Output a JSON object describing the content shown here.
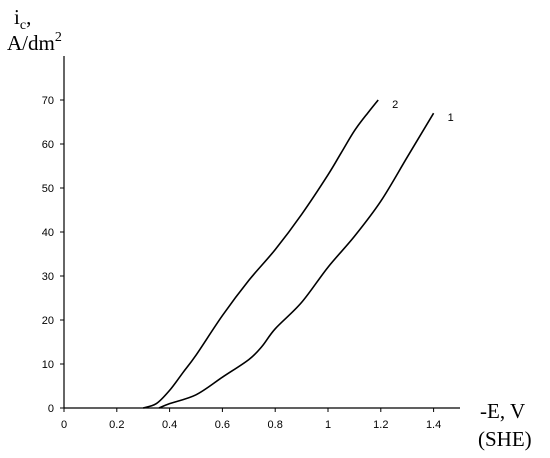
{
  "chart_data": {
    "type": "line",
    "title": "",
    "ylabel_line1": "i",
    "ylabel_sub": "c",
    "ylabel_comma": ",",
    "ylabel_line2_base": "A/dm",
    "ylabel_line2_sup": "2",
    "xlabel": "-E, V",
    "xlabel_line2": "(SHE)",
    "xlim": [
      0,
      1.5
    ],
    "ylim": [
      0,
      80
    ],
    "x_ticks": [
      {
        "value": 0,
        "label": "0"
      },
      {
        "value": 0.2,
        "label": "0.2"
      },
      {
        "value": 0.4,
        "label": "0.4"
      },
      {
        "value": 0.6,
        "label": "0.6"
      },
      {
        "value": 0.8,
        "label": "0.8"
      },
      {
        "value": 1.0,
        "label": "1"
      },
      {
        "value": 1.2,
        "label": "1.2"
      },
      {
        "value": 1.4,
        "label": "1.4"
      }
    ],
    "y_ticks": [
      {
        "value": 0,
        "label": "0"
      },
      {
        "value": 10,
        "label": "10"
      },
      {
        "value": 20,
        "label": "20"
      },
      {
        "value": 30,
        "label": "30"
      },
      {
        "value": 40,
        "label": "40"
      },
      {
        "value": 50,
        "label": "50"
      },
      {
        "value": 60,
        "label": "60"
      },
      {
        "value": 70,
        "label": "70"
      }
    ],
    "grid": false,
    "legend": "none",
    "series": [
      {
        "name": "2",
        "x": [
          0.3,
          0.35,
          0.4,
          0.45,
          0.5,
          0.6,
          0.7,
          0.8,
          0.9,
          1.0,
          1.05,
          1.1,
          1.15,
          1.19
        ],
        "values": [
          0,
          1,
          4,
          8,
          12,
          21,
          29,
          36,
          44,
          53,
          58,
          63,
          67,
          70
        ]
      },
      {
        "name": "1",
        "x": [
          0.36,
          0.4,
          0.5,
          0.6,
          0.7,
          0.75,
          0.8,
          0.9,
          1.0,
          1.1,
          1.2,
          1.3,
          1.4
        ],
        "values": [
          0,
          1,
          3,
          7,
          11,
          14,
          18,
          24,
          32,
          39,
          47,
          57,
          67
        ]
      }
    ]
  }
}
